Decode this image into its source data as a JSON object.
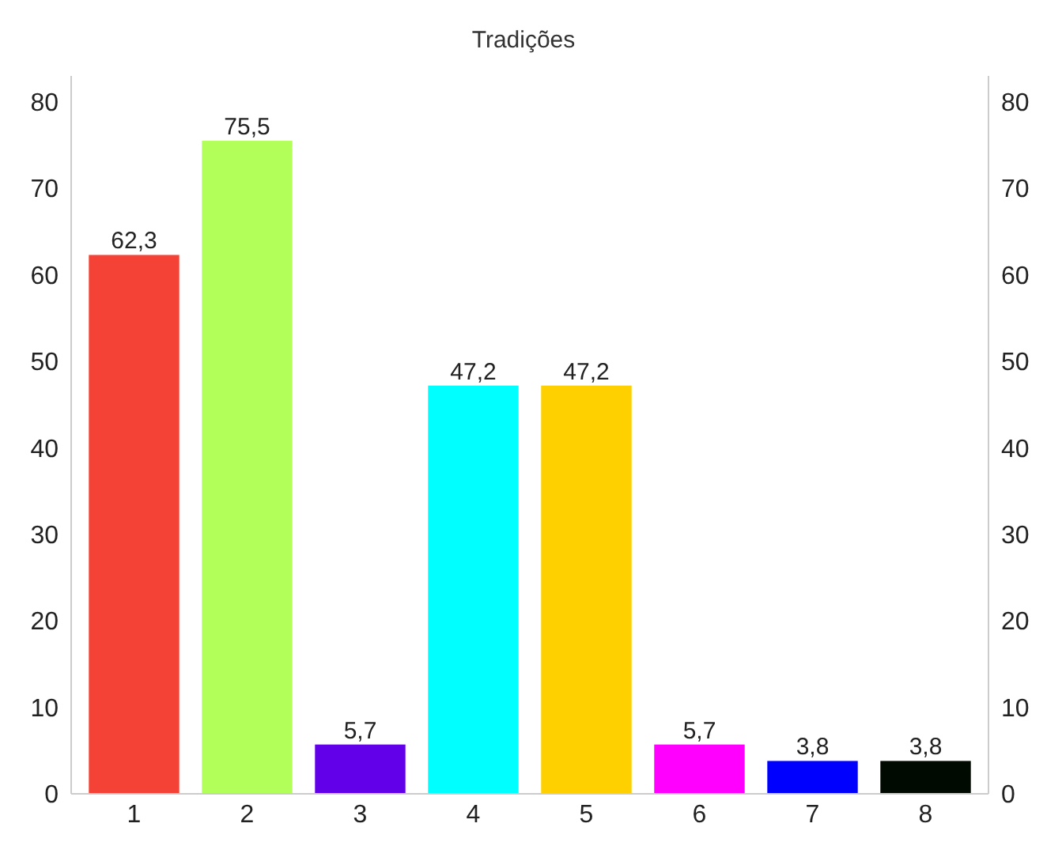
{
  "chart_data": {
    "type": "bar",
    "title": "Tradições",
    "categories": [
      "1",
      "2",
      "3",
      "4",
      "5",
      "6",
      "7",
      "8"
    ],
    "values": [
      62.3,
      75.5,
      5.7,
      47.2,
      47.2,
      5.7,
      3.8,
      3.8
    ],
    "colors": [
      "#f44336",
      "#b2ff59",
      "#6200ea",
      "#00ffff",
      "#ffd000",
      "#ff00ff",
      "#0000ff",
      "#000a00"
    ],
    "value_labels": [
      "62,3",
      "75,5",
      "5,7",
      "47,2",
      "47,2",
      "5,7",
      "3,8",
      "3,8"
    ],
    "ylim": [
      0,
      83
    ],
    "yticks": [
      0,
      10,
      20,
      30,
      40,
      50,
      60,
      70,
      80
    ],
    "y2lim": [
      0,
      83
    ],
    "y2ticks": [
      0,
      10,
      20,
      30,
      40,
      50,
      60,
      70,
      80
    ],
    "grid": false
  }
}
